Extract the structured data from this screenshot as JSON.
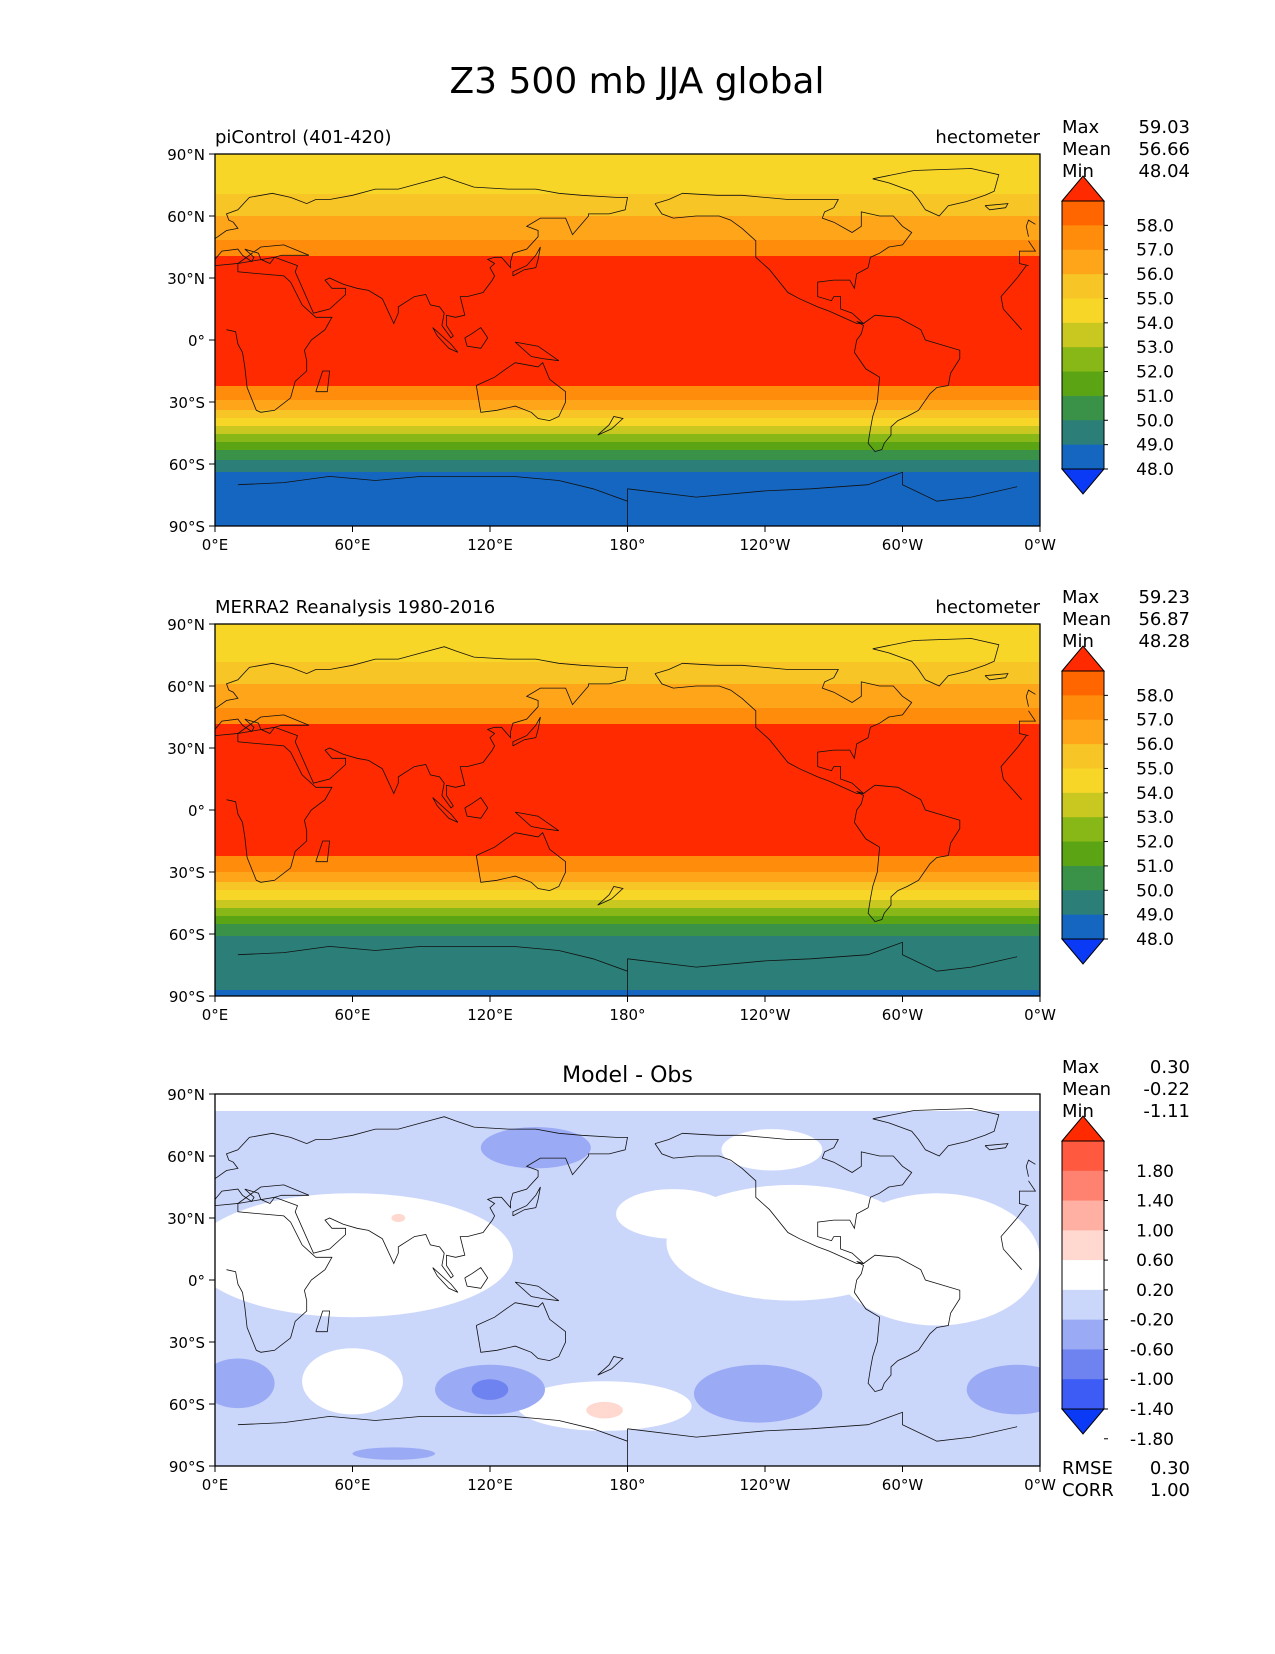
{
  "title": "Z3 500 mb JJA global",
  "lat_ticks": [
    "90°N",
    "60°N",
    "30°N",
    "0°",
    "30°S",
    "60°S",
    "90°S"
  ],
  "lon_ticks": [
    "0°E",
    "60°E",
    "120°E",
    "180°",
    "120°W",
    "60°W",
    "0°W"
  ],
  "panels": [
    {
      "left_title": "piControl (401-420)",
      "center_title": "",
      "right_title": "hectometer",
      "stats": [
        {
          "label": "Max",
          "value": "59.03"
        },
        {
          "label": "Mean",
          "value": "56.66"
        },
        {
          "label": "Min",
          "value": "48.04"
        }
      ],
      "colorbar": {
        "ticks": [
          "58.0",
          "57.0",
          "56.0",
          "55.0",
          "54.0",
          "53.0",
          "52.0",
          "51.0",
          "50.0",
          "49.0",
          "48.0"
        ],
        "colors": [
          "#ff2a00",
          "#ff6600",
          "#ff8c0a",
          "#ffa51a",
          "#f7c525",
          "#f7d628",
          "#c8c820",
          "#88b818",
          "#5ba515",
          "#3a9148",
          "#2b7f78",
          "#1566c0",
          "#0a3af5"
        ]
      },
      "field": {
        "lat_levels": [
          {
            "lat": 90,
            "value": 54.5
          },
          {
            "lat": 75,
            "value": 54.6
          },
          {
            "lat": 65,
            "value": 55.6
          },
          {
            "lat": 50,
            "value": 56.8
          },
          {
            "lat": 40,
            "value": 58.1
          },
          {
            "lat": 0,
            "value": 58.5
          },
          {
            "lat": -20,
            "value": 58.2
          },
          {
            "lat": -28,
            "value": 57.3
          },
          {
            "lat": -35,
            "value": 55.8
          },
          {
            "lat": -42,
            "value": 54.0
          },
          {
            "lat": -50,
            "value": 51.8
          },
          {
            "lat": -58,
            "value": 50.0
          },
          {
            "lat": -65,
            "value": 48.8
          },
          {
            "lat": -90,
            "value": 48.3
          }
        ]
      }
    },
    {
      "left_title": "MERRA2 Reanalysis 1980-2016",
      "center_title": "",
      "right_title": "hectometer",
      "stats": [
        {
          "label": "Max",
          "value": "59.23"
        },
        {
          "label": "Mean",
          "value": "56.87"
        },
        {
          "label": "Min",
          "value": "48.28"
        }
      ],
      "colorbar": {
        "ticks": [
          "58.0",
          "57.0",
          "56.0",
          "55.0",
          "54.0",
          "53.0",
          "52.0",
          "51.0",
          "50.0",
          "49.0",
          "48.0"
        ],
        "colors": [
          "#ff2a00",
          "#ff6600",
          "#ff8c0a",
          "#ffa51a",
          "#f7c525",
          "#f7d628",
          "#c8c820",
          "#88b818",
          "#5ba515",
          "#3a9148",
          "#2b7f78",
          "#1566c0",
          "#0a3af5"
        ]
      },
      "field": {
        "lat_levels": [
          {
            "lat": 90,
            "value": 54.5
          },
          {
            "lat": 75,
            "value": 54.7
          },
          {
            "lat": 65,
            "value": 55.7
          },
          {
            "lat": 50,
            "value": 56.9
          },
          {
            "lat": 40,
            "value": 58.2
          },
          {
            "lat": 0,
            "value": 58.6
          },
          {
            "lat": -20,
            "value": 58.3
          },
          {
            "lat": -28,
            "value": 57.4
          },
          {
            "lat": -35,
            "value": 56.0
          },
          {
            "lat": -42,
            "value": 54.3
          },
          {
            "lat": -50,
            "value": 52.2
          },
          {
            "lat": -58,
            "value": 50.4
          },
          {
            "lat": -67,
            "value": 49.3
          },
          {
            "lat": -82,
            "value": 49.2
          },
          {
            "lat": -90,
            "value": 48.9
          }
        ]
      }
    },
    {
      "left_title": "",
      "center_title": "Model - Obs",
      "right_title": "",
      "stats": [
        {
          "label": "Max",
          "value": "0.30"
        },
        {
          "label": "Mean",
          "value": "-0.22"
        },
        {
          "label": "Min",
          "value": "-1.11"
        }
      ],
      "colorbar": {
        "ticks": [
          "1.80",
          "1.40",
          "1.00",
          "0.60",
          "0.20",
          "-0.20",
          "-0.60",
          "-1.00",
          "-1.40",
          "-1.80"
        ],
        "colors": [
          "#ff2a00",
          "#ff5a40",
          "#ff8270",
          "#ffb0a3",
          "#ffd8d0",
          "#ffffff",
          "#cbd6fb",
          "#9aaaf5",
          "#6e82f0",
          "#3d5cf5",
          "#0a3af5"
        ]
      },
      "bottom_stats": [
        {
          "label": "RMSE",
          "value": "0.30"
        },
        {
          "label": "CORR",
          "value": "1.00"
        }
      ],
      "field": {
        "background_value": -0.4,
        "blobs": [
          {
            "lon": 60,
            "lat": 12,
            "rx": 70,
            "ry": 30,
            "value": -0.1
          },
          {
            "lon": 252,
            "lat": 18,
            "rx": 55,
            "ry": 28,
            "value": -0.1
          },
          {
            "lon": 200,
            "lat": 32,
            "rx": 25,
            "ry": 12,
            "value": -0.1
          },
          {
            "lon": 315,
            "lat": 10,
            "rx": 45,
            "ry": 32,
            "value": -0.1
          },
          {
            "lon": 243,
            "lat": 63,
            "rx": 22,
            "ry": 10,
            "value": -0.1
          },
          {
            "lon": 60,
            "lat": -49,
            "rx": 22,
            "ry": 16,
            "value": -0.1
          },
          {
            "lon": 170,
            "lat": -61,
            "rx": 38,
            "ry": 12,
            "value": -0.1
          },
          {
            "lon": 120,
            "lat": -53,
            "rx": 24,
            "ry": 12,
            "value": -0.8
          },
          {
            "lon": 120,
            "lat": -53,
            "rx": 8,
            "ry": 5,
            "value": -1.1
          },
          {
            "lon": 237,
            "lat": -55,
            "rx": 28,
            "ry": 14,
            "value": -0.8
          },
          {
            "lon": 10,
            "lat": -50,
            "rx": 16,
            "ry": 12,
            "value": -0.8
          },
          {
            "lon": 350,
            "lat": -53,
            "rx": 22,
            "ry": 12,
            "value": -0.8
          },
          {
            "lon": 140,
            "lat": 64,
            "rx": 24,
            "ry": 10,
            "value": -0.8
          },
          {
            "lon": 78,
            "lat": -84,
            "rx": 18,
            "ry": 3,
            "value": -0.8
          },
          {
            "lon": 80,
            "lat": 30,
            "rx": 3,
            "ry": 2,
            "value": 0.3
          },
          {
            "lon": 170,
            "lat": -63,
            "rx": 8,
            "ry": 4,
            "value": 0.3
          }
        ]
      }
    }
  ]
}
